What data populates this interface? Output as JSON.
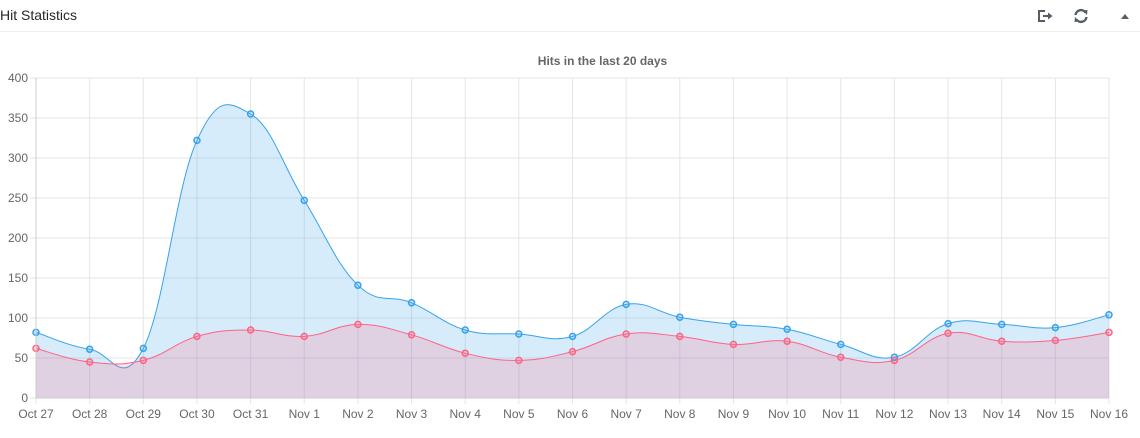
{
  "widget": {
    "title": "Hit Statistics",
    "icons": [
      "export-icon",
      "refresh-icon",
      "collapse-arrow-icon"
    ]
  },
  "colors": {
    "visits_line": "#36a2eb",
    "visits_fill": "rgba(54,162,235,0.2)",
    "visitors_line": "#ff6384",
    "visitors_fill": "rgba(255,99,132,0.2)",
    "grid": "#e5e5e5",
    "tick_text": "#666666"
  },
  "chart_data": {
    "type": "area",
    "title": "Hits in the last 20 days",
    "xlabel": "",
    "ylabel": "",
    "ylim": [
      0,
      400
    ],
    "yticks": [
      0,
      50,
      100,
      150,
      200,
      250,
      300,
      350,
      400
    ],
    "grid": true,
    "legend": "none",
    "categories": [
      "Oct 27",
      "Oct 28",
      "Oct 29",
      "Oct 30",
      "Oct 31",
      "Nov 1",
      "Nov 2",
      "Nov 3",
      "Nov 4",
      "Nov 5",
      "Nov 6",
      "Nov 7",
      "Nov 8",
      "Nov 9",
      "Nov 10",
      "Nov 11",
      "Nov 12",
      "Nov 13",
      "Nov 14",
      "Nov 15",
      "Nov 16"
    ],
    "series": [
      {
        "color": "#36a2eb",
        "values": [
          82,
          61,
          62,
          322,
          355,
          247,
          141,
          119,
          85,
          80,
          77,
          117,
          101,
          92,
          86,
          67,
          51,
          93,
          92,
          88,
          104
        ]
      },
      {
        "color": "#ff6384",
        "values": [
          62,
          45,
          47,
          77,
          85,
          77,
          92,
          79,
          56,
          47,
          58,
          80,
          77,
          67,
          71,
          51,
          47,
          81,
          71,
          72,
          82
        ]
      }
    ]
  }
}
